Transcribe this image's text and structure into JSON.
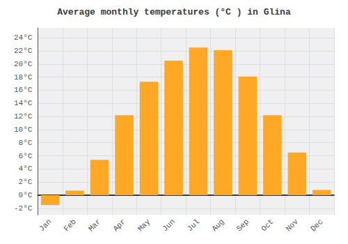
{
  "chart_data": {
    "type": "bar",
    "title": "Average monthly temperatures (°C ) in Glina",
    "categories": [
      "Jan",
      "Feb",
      "Mar",
      "Apr",
      "May",
      "Jun",
      "Jul",
      "Aug",
      "Sep",
      "Oct",
      "Nov",
      "Dec"
    ],
    "values": [
      -1.5,
      0.7,
      5.4,
      12.2,
      17.3,
      20.5,
      22.5,
      22.1,
      18.1,
      12.2,
      6.5,
      0.8
    ],
    "color": "#FFA826",
    "ylim": [
      -3,
      25.5
    ],
    "yticks": [
      {
        "value": -2,
        "label": "-2°C"
      },
      {
        "value": 0,
        "label": "0°C"
      },
      {
        "value": 2,
        "label": "2°C"
      },
      {
        "value": 4,
        "label": "4°C"
      },
      {
        "value": 6,
        "label": "6°C"
      },
      {
        "value": 8,
        "label": "8°C"
      },
      {
        "value": 10,
        "label": "10°C"
      },
      {
        "value": 12,
        "label": "12°C"
      },
      {
        "value": 14,
        "label": "14°C"
      },
      {
        "value": 16,
        "label": "16°C"
      },
      {
        "value": 18,
        "label": "18°C"
      },
      {
        "value": 20,
        "label": "20°C"
      },
      {
        "value": 22,
        "label": "22°C"
      },
      {
        "value": 24,
        "label": "24°C"
      }
    ],
    "grid": true
  }
}
